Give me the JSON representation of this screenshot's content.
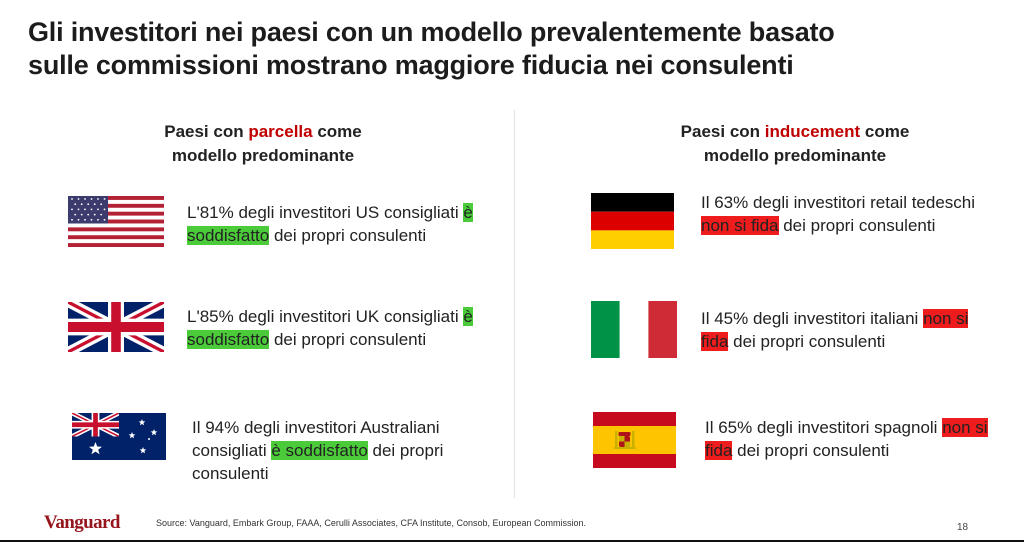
{
  "title": {
    "line1": "Gli investitori nei paesi con un modello prevalentemente basato",
    "line2": "sulle commissioni mostrano maggiore fiducia nei consulenti"
  },
  "left": {
    "heading": {
      "pre": "Paesi con ",
      "keyword": "parcella",
      "post": " come",
      "line2": "modello predominante"
    },
    "items": [
      {
        "flag": "usa-flag-icon",
        "pre": "L'81% degli investitori US consigliati ",
        "highlight": "è soddisfatto",
        "post": " dei propri consulenti"
      },
      {
        "flag": "uk-flag-icon",
        "pre": "L'85% degli investitori UK consigliati ",
        "highlight": "è soddisfatto",
        "post": " dei propri consulenti"
      },
      {
        "flag": "australia-flag-icon",
        "pre": "Il 94% degli investitori Australiani consigliati ",
        "highlight": "è soddisfatto",
        "post": " dei propri consulenti"
      }
    ]
  },
  "right": {
    "heading": {
      "pre": "Paesi con ",
      "keyword": "inducement",
      "post": " come",
      "line2": "modello predominante"
    },
    "items": [
      {
        "flag": "germany-flag-icon",
        "pre": "Il 63% degli investitori retail tedeschi ",
        "highlight": "non si fida",
        "post": " dei propri consulenti"
      },
      {
        "flag": "italy-flag-icon",
        "pre": "Il 45% degli investitori italiani ",
        "highlight": "non si fida",
        "post": " dei propri consulenti"
      },
      {
        "flag": "spain-flag-icon",
        "pre": "Il 65% degli investitori spagnoli ",
        "highlight": "non si fida",
        "post": " dei propri consulenti"
      }
    ]
  },
  "colors": {
    "keyword": "#c00000",
    "highlight_green": "#4ccb3a",
    "highlight_red": "#ee1c1c",
    "brand": "#96151d"
  },
  "footer": {
    "logo": "Vanguard",
    "source": "Source: Vanguard, Embark Group, FAAA, Cerulli Associates, CFA Institute, Consob, European Commission.",
    "page": "18"
  }
}
